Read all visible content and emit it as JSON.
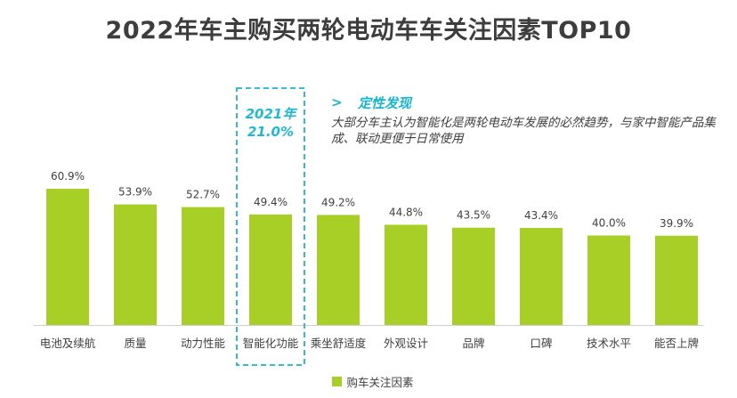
{
  "title": "2022年车主购买两轮电动车车关注因素TOP10",
  "insight": {
    "heading": "定性发现",
    "text": "大部分车主认为智能化是两轮电动车发展的必然趋势，与家中智能产品集成、联动更便于日常使用"
  },
  "previous_year": {
    "year_label": "2021年",
    "value_label": "21.0%"
  },
  "colors": {
    "bar": "#a8cf26",
    "accent": "#17b5d1"
  },
  "icons": {
    "insight_arrow": "chevron-right-icon"
  },
  "chart_data": {
    "type": "bar",
    "title": "2022年车主购买两轮电动车车关注因素TOP10",
    "categories": [
      "电池及续航",
      "质量",
      "动力性能",
      "智能化功能",
      "乘坐舒适度",
      "外观设计",
      "品牌",
      "口碑",
      "技术水平",
      "能否上牌"
    ],
    "values": [
      60.9,
      53.9,
      52.7,
      49.4,
      49.2,
      44.8,
      43.5,
      43.4,
      40.0,
      39.9
    ],
    "value_labels": [
      "60.9%",
      "53.9%",
      "52.7%",
      "49.4%",
      "49.2%",
      "44.8%",
      "43.5%",
      "43.4%",
      "40.0%",
      "39.9%"
    ],
    "series": [
      {
        "name": "购车关注因素",
        "values": [
          60.9,
          53.9,
          52.7,
          49.4,
          49.2,
          44.8,
          43.5,
          43.4,
          40.0,
          39.9
        ]
      }
    ],
    "legend": [
      "购车关注因素"
    ],
    "legend_position": "bottom",
    "highlight_category": "智能化功能",
    "xlabel": "",
    "ylabel": "",
    "ylim": [
      0,
      60.9
    ],
    "grid": false
  }
}
